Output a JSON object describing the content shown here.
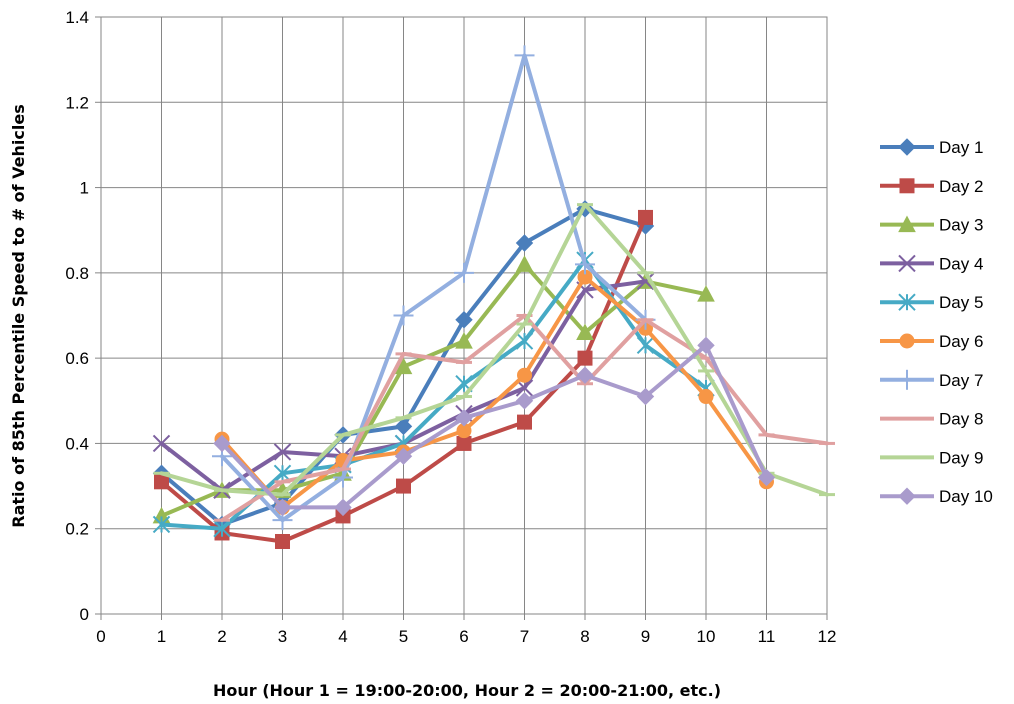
{
  "chart_data": {
    "type": "line",
    "title": "",
    "xlabel": "Hour (Hour 1 = 19:00-20:00, Hour 2 = 20:00-21:00, etc.)",
    "ylabel": "Ratio of 85th Percentile Speed to # of Vehicles",
    "xlim": [
      0,
      12
    ],
    "ylim": [
      0,
      1.4
    ],
    "x_ticks": [
      "0",
      "1",
      "2",
      "3",
      "4",
      "5",
      "6",
      "7",
      "8",
      "9",
      "10",
      "11",
      "12"
    ],
    "y_ticks": [
      "0",
      "0.2",
      "0.4",
      "0.6",
      "0.8",
      "1",
      "1.2",
      "1.4"
    ],
    "grid": true,
    "legend_position": "right",
    "series": [
      {
        "name": "Day 1",
        "color": "#4a7ebb",
        "marker": "diamond",
        "x": [
          1,
          2,
          3,
          4,
          5,
          6,
          7,
          8,
          9
        ],
        "y": [
          0.33,
          0.21,
          0.26,
          0.42,
          0.44,
          0.69,
          0.87,
          0.95,
          0.91
        ]
      },
      {
        "name": "Day 2",
        "color": "#be4b48",
        "marker": "square",
        "x": [
          1,
          2,
          3,
          4,
          5,
          6,
          7,
          8,
          9
        ],
        "y": [
          0.31,
          0.19,
          0.17,
          0.23,
          0.3,
          0.4,
          0.45,
          0.6,
          0.93
        ]
      },
      {
        "name": "Day 3",
        "color": "#98b954",
        "marker": "triangle",
        "x": [
          1,
          2,
          3,
          4,
          5,
          6,
          7,
          8,
          9,
          10
        ],
        "y": [
          0.23,
          0.29,
          0.29,
          0.33,
          0.58,
          0.64,
          0.82,
          0.66,
          0.78,
          0.75
        ]
      },
      {
        "name": "Day 4",
        "color": "#7d60a0",
        "marker": "x",
        "x": [
          1,
          2,
          3,
          4,
          5,
          6,
          7,
          8,
          9
        ],
        "y": [
          0.4,
          0.29,
          0.38,
          0.37,
          0.4,
          0.47,
          0.53,
          0.76,
          0.78
        ]
      },
      {
        "name": "Day 5",
        "color": "#46aac5",
        "marker": "star",
        "x": [
          1,
          2,
          3,
          4,
          5,
          6,
          7,
          8,
          9,
          10
        ],
        "y": [
          0.21,
          0.2,
          0.33,
          0.35,
          0.4,
          0.54,
          0.64,
          0.83,
          0.63,
          0.53
        ]
      },
      {
        "name": "Day 6",
        "color": "#f79646",
        "marker": "circle",
        "x": [
          2,
          3,
          4,
          5,
          6,
          7,
          8,
          9,
          10,
          11
        ],
        "y": [
          0.41,
          0.25,
          0.36,
          0.38,
          0.43,
          0.56,
          0.79,
          0.67,
          0.51,
          0.31
        ]
      },
      {
        "name": "Day 7",
        "color": "#93afe0",
        "marker": "plus",
        "x": [
          2,
          3,
          4,
          5,
          6,
          7,
          8,
          9
        ],
        "y": [
          0.37,
          0.22,
          0.32,
          0.7,
          0.8,
          1.31,
          0.82,
          0.69
        ]
      },
      {
        "name": "Day 8",
        "color": "#e0a0a0",
        "marker": "dash",
        "x": [
          2,
          3,
          4,
          5,
          6,
          7,
          8,
          9,
          10,
          11,
          12
        ],
        "y": [
          0.22,
          0.31,
          0.34,
          0.61,
          0.59,
          0.7,
          0.54,
          0.69,
          0.6,
          0.42,
          0.4
        ]
      },
      {
        "name": "Day 9",
        "color": "#b5d596",
        "marker": "dash",
        "x": [
          1,
          2,
          3,
          4,
          5,
          6,
          7,
          8,
          9,
          10,
          11,
          12
        ],
        "y": [
          0.33,
          0.29,
          0.28,
          0.42,
          0.46,
          0.51,
          0.68,
          0.96,
          0.8,
          0.57,
          0.33,
          0.28
        ]
      },
      {
        "name": "Day 10",
        "color": "#a99bcc",
        "marker": "diamond",
        "x": [
          2,
          3,
          4,
          5,
          6,
          7,
          8,
          9,
          10,
          11
        ],
        "y": [
          0.4,
          0.25,
          0.25,
          0.37,
          0.46,
          0.5,
          0.56,
          0.51,
          0.63,
          0.32
        ]
      }
    ]
  }
}
